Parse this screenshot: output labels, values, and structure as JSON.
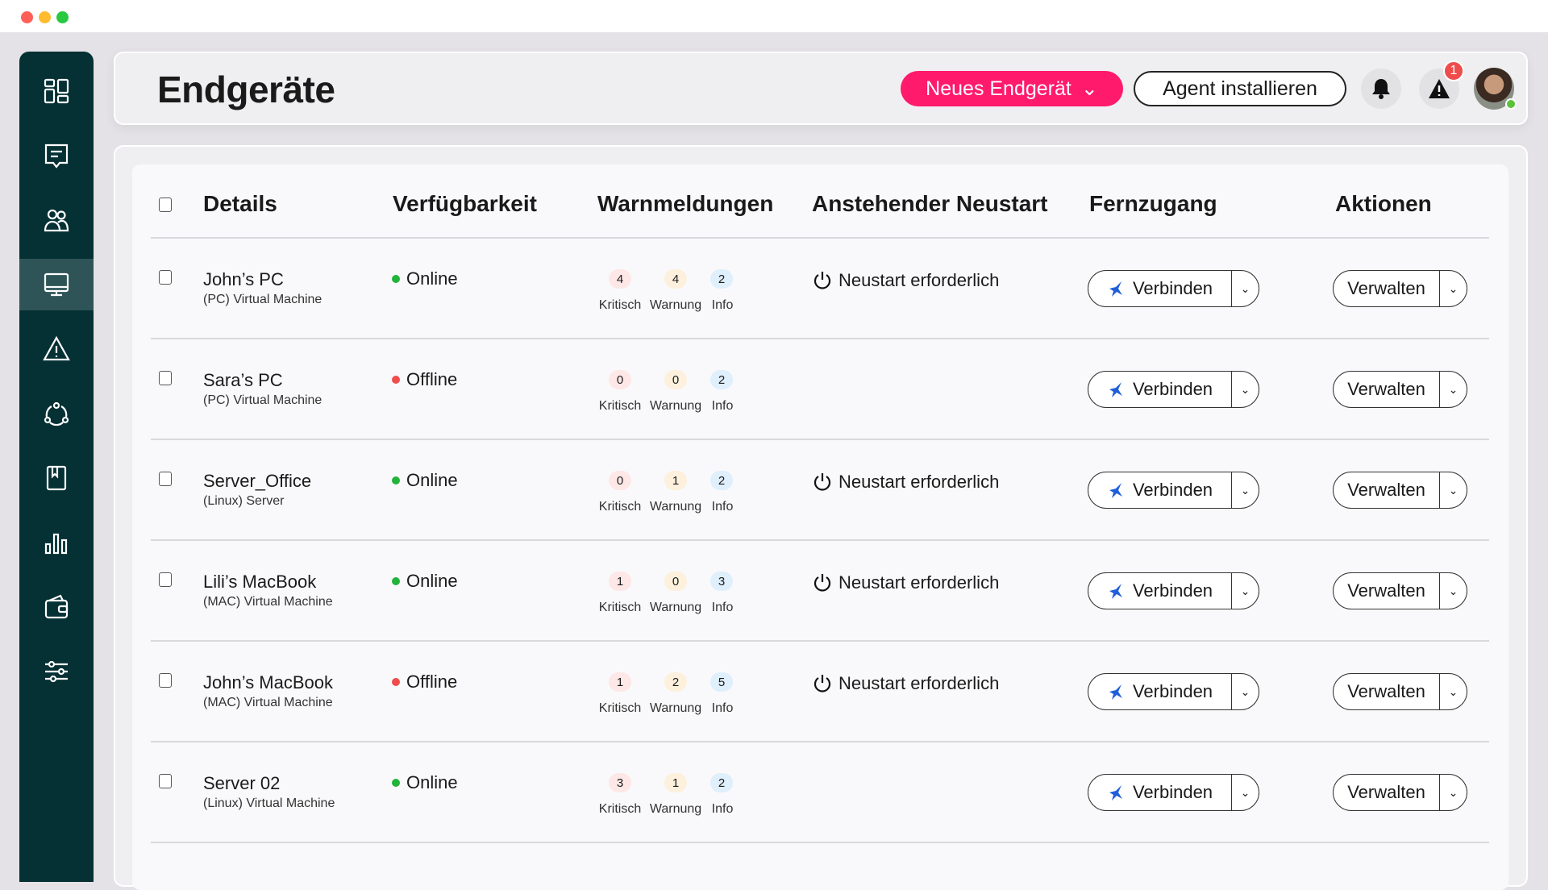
{
  "window": {
    "controls": [
      "close",
      "minimize",
      "maximize"
    ]
  },
  "sidebar": {
    "items": [
      {
        "icon": "dashboard-icon"
      },
      {
        "icon": "chat-icon"
      },
      {
        "icon": "users-icon"
      },
      {
        "icon": "monitor-icon",
        "active": true
      },
      {
        "icon": "warning-icon"
      },
      {
        "icon": "network-icon"
      },
      {
        "icon": "book-icon"
      },
      {
        "icon": "chart-icon"
      },
      {
        "icon": "wallet-icon"
      },
      {
        "icon": "sliders-icon"
      }
    ]
  },
  "header": {
    "title": "Endgeräte",
    "new_button": "Neues Endgerät",
    "agent_button": "Agent installieren",
    "alert_count": "1"
  },
  "colors": {
    "accent": "#ff1a6b",
    "sidebar": "#053034",
    "online": "#22b33a",
    "offline": "#ef4c4c"
  },
  "table": {
    "columns": [
      "Details",
      "Verfügbarkeit",
      "Warnmeldungen",
      "Anstehender Neustart",
      "Fernzugang",
      "Aktionen"
    ],
    "alert_labels": [
      "Kritisch",
      "Warnung",
      "Info"
    ],
    "connect_label": "Verbinden",
    "manage_label": "Verwalten",
    "rows": [
      {
        "name": "John’s PC",
        "type": "(PC) Virtual Machine",
        "status": "Online",
        "critical": "4",
        "warning": "4",
        "info": "2",
        "restart": "Neustart erforderlich"
      },
      {
        "name": "Sara’s PC",
        "type": "(PC) Virtual Machine",
        "status": "Offline",
        "critical": "0",
        "warning": "0",
        "info": "2",
        "restart": ""
      },
      {
        "name": "Server_Office",
        "type": "(Linux) Server",
        "status": "Online",
        "critical": "0",
        "warning": "1",
        "info": "2",
        "restart": "Neustart erforderlich"
      },
      {
        "name": "Lili’s MacBook",
        "type": "(MAC) Virtual Machine",
        "status": "Online",
        "critical": "1",
        "warning": "0",
        "info": "3",
        "restart": "Neustart erforderlich"
      },
      {
        "name": "John’s MacBook",
        "type": "(MAC) Virtual Machine",
        "status": "Offline",
        "critical": "1",
        "warning": "2",
        "info": "5",
        "restart": "Neustart erforderlich"
      },
      {
        "name": "Server 02",
        "type": "(Linux) Virtual Machine",
        "status": "Online",
        "critical": "3",
        "warning": "1",
        "info": "2",
        "restart": ""
      }
    ]
  }
}
